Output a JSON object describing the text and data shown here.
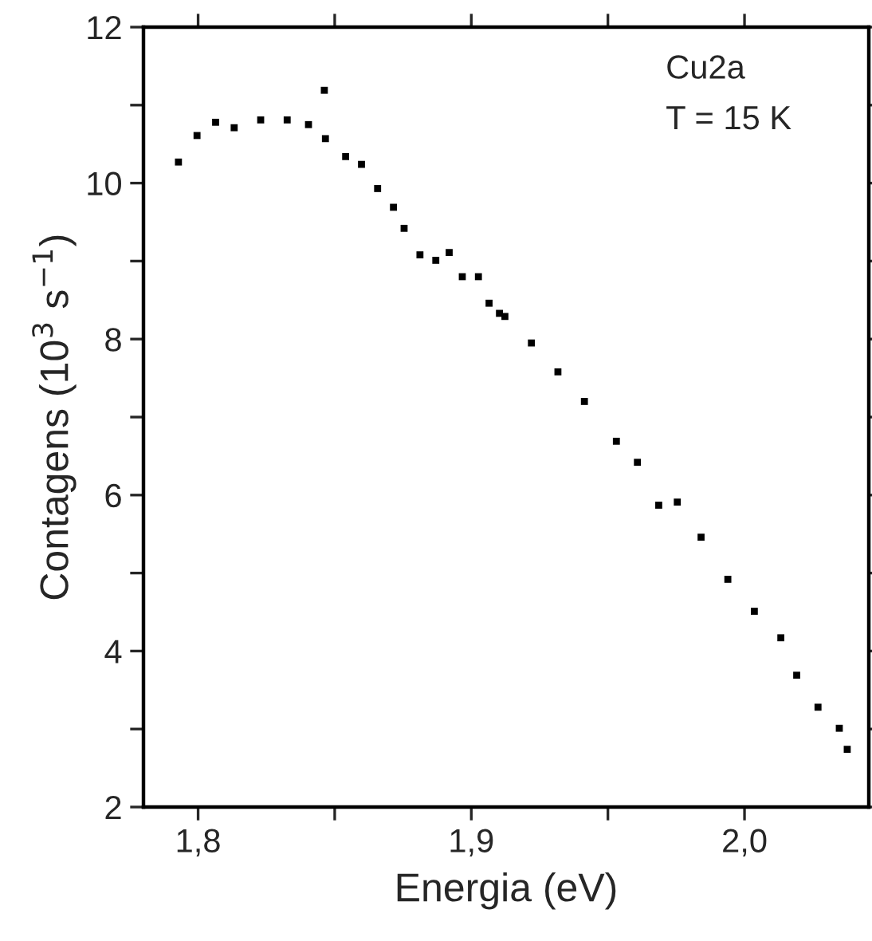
{
  "chart_data": {
    "type": "scatter",
    "xlabel": "Energia (eV)",
    "ylabel": "Contagens (10$^{3}$ s$^{−1}$)",
    "annotations": [
      "Cu2a",
      "T = 15 K"
    ],
    "marker": "square",
    "grid": false,
    "legend": false,
    "xlim": [
      1.78,
      2.0455
    ],
    "ylim": [
      2,
      12
    ],
    "xticks": [
      {
        "value": 1.8,
        "label": "1,8"
      },
      {
        "value": 1.85,
        "label": null
      },
      {
        "value": 1.9,
        "label": "1,9"
      },
      {
        "value": 1.95,
        "label": null
      },
      {
        "value": 2.0,
        "label": "2,0"
      }
    ],
    "yticks": [
      2,
      {
        "value": 3,
        "label": null
      },
      4,
      {
        "value": 5,
        "label": null
      },
      6,
      {
        "value": 7,
        "label": null
      },
      8,
      {
        "value": 9,
        "label": null
      },
      10,
      {
        "value": 11,
        "label": null
      },
      12
    ],
    "series": [
      {
        "color": "#000000",
        "x": [
          1.7928,
          1.7996,
          1.8064,
          1.8132,
          1.8229,
          1.8326,
          1.8404,
          1.8462,
          1.8466,
          1.854,
          1.8598,
          1.8657,
          1.8715,
          1.8754,
          1.8812,
          1.887,
          1.8919,
          1.8967,
          1.9026,
          1.9065,
          1.9103,
          1.9123,
          1.922,
          1.9317,
          1.9414,
          1.9531,
          1.9608,
          1.9686,
          1.9754,
          1.9841,
          1.9939,
          2.0036,
          2.0133,
          2.0191,
          2.0269,
          2.0347,
          2.0376
        ],
        "values": [
          10.27,
          10.61,
          10.78,
          10.71,
          10.81,
          10.81,
          10.75,
          11.19,
          10.57,
          10.34,
          10.24,
          9.93,
          9.69,
          9.42,
          9.08,
          9.01,
          9.11,
          8.8,
          8.8,
          8.46,
          8.33,
          8.29,
          7.95,
          7.58,
          7.2,
          6.69,
          6.42,
          5.87,
          5.91,
          5.46,
          4.92,
          4.51,
          4.17,
          3.69,
          3.28,
          3.01,
          2.74
        ]
      }
    ]
  }
}
